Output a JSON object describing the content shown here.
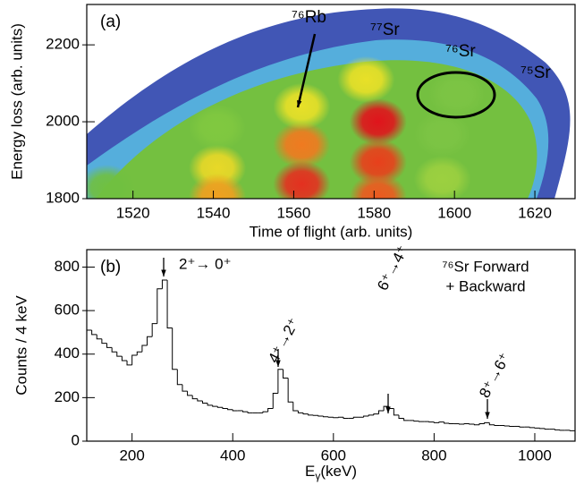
{
  "chart_data": [
    {
      "type": "heatmap",
      "panel_label": "(a)",
      "x_label": "Time of flight (arb. units)",
      "y_label": "Energy loss (arb. units)",
      "xlim": [
        1508.5,
        1630
      ],
      "ylim": [
        1800,
        2305
      ],
      "xticks": [
        1520,
        1540,
        1560,
        1580,
        1600,
        1620
      ],
      "yticks": [
        1800,
        2000,
        2200
      ],
      "background_color": "#2038a8",
      "clusters": [
        {
          "x": 1581,
          "y": 2000,
          "color": "#e0141c"
        },
        {
          "x": 1581,
          "y": 1895,
          "color": "#e8401c"
        },
        {
          "x": 1581,
          "y": 1805,
          "color": "#ec5a20"
        },
        {
          "x": 1562,
          "y": 1940,
          "color": "#f07a20"
        },
        {
          "x": 1562,
          "y": 1838,
          "color": "#e43020"
        },
        {
          "x": 1562,
          "y": 2040,
          "color": "#e8e028"
        },
        {
          "x": 1578,
          "y": 2110,
          "color": "#e8e028"
        },
        {
          "x": 1541,
          "y": 1880,
          "color": "#e8d828"
        },
        {
          "x": 1541,
          "y": 1985,
          "color": "#80c840"
        },
        {
          "x": 1600.6,
          "y": 2072,
          "color": "#7cc444"
        },
        {
          "x": 1597,
          "y": 1967,
          "color": "#7cc444"
        },
        {
          "x": 1597,
          "y": 1851,
          "color": "#9cd040"
        },
        {
          "x": 1513.5,
          "y": 1828,
          "color": "#70c040"
        },
        {
          "x": 1541,
          "y": 1805,
          "color": "#f0a020"
        }
      ],
      "annotations": [
        "⁷⁶Rb",
        "⁷⁷Sr",
        "⁷⁶Sr",
        "⁷⁵Sr"
      ]
    },
    {
      "type": "histogram",
      "panel_label": "(b)",
      "x_label": [
        "E",
        "γ",
        "(keV)"
      ],
      "y_label": "Counts / 4 keV",
      "xlim": [
        110,
        1080
      ],
      "ylim": [
        0,
        880
      ],
      "xticks": [
        200,
        400,
        600,
        800,
        1000
      ],
      "yticks": [
        0,
        200,
        400,
        600,
        800
      ],
      "bins": [
        110,
        120,
        130,
        140,
        150,
        160,
        170,
        180,
        190,
        200,
        210,
        220,
        230,
        240,
        250,
        260,
        270,
        280,
        290,
        300,
        310,
        320,
        330,
        340,
        350,
        360,
        370,
        380,
        390,
        400,
        410,
        420,
        430,
        440,
        450,
        460,
        470,
        480,
        490,
        500,
        510,
        520,
        530,
        540,
        550,
        560,
        570,
        580,
        590,
        600,
        610,
        620,
        630,
        640,
        650,
        660,
        670,
        680,
        690,
        700,
        710,
        720,
        730,
        740,
        750,
        760,
        770,
        780,
        790,
        800,
        810,
        820,
        830,
        840,
        850,
        860,
        870,
        880,
        890,
        900,
        910,
        920,
        930,
        940,
        950,
        960,
        970,
        980,
        990,
        1000,
        1010,
        1020,
        1030,
        1040,
        1050,
        1060,
        1070,
        1080
      ],
      "counts": [
        510,
        490,
        470,
        450,
        430,
        410,
        390,
        370,
        350,
        395,
        410,
        440,
        480,
        540,
        700,
        740,
        520,
        330,
        260,
        230,
        210,
        195,
        185,
        175,
        165,
        160,
        155,
        150,
        145,
        140,
        140,
        135,
        130,
        130,
        130,
        135,
        150,
        220,
        330,
        290,
        180,
        140,
        130,
        125,
        120,
        118,
        115,
        112,
        110,
        108,
        110,
        105,
        105,
        110,
        110,
        115,
        120,
        125,
        140,
        160,
        150,
        120,
        105,
        95,
        95,
        92,
        90,
        90,
        88,
        85,
        88,
        82,
        80,
        80,
        78,
        80,
        78,
        75,
        80,
        85,
        75,
        72,
        72,
        70,
        68,
        68,
        65,
        65,
        62,
        60,
        58,
        55,
        55,
        52,
        50,
        50,
        48
      ],
      "annotations": [
        "2⁺→ 0⁺",
        "4⁺→2⁺",
        "6⁺→4⁺",
        "8⁺→6⁺",
        "⁷⁶Sr Forward",
        "+ Backward"
      ]
    }
  ]
}
